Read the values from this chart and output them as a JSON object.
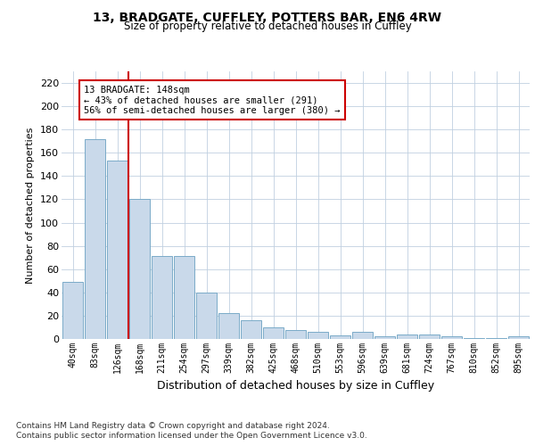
{
  "title1": "13, BRADGATE, CUFFLEY, POTTERS BAR, EN6 4RW",
  "title2": "Size of property relative to detached houses in Cuffley",
  "xlabel": "Distribution of detached houses by size in Cuffley",
  "ylabel": "Number of detached properties",
  "categories": [
    "40sqm",
    "83sqm",
    "126sqm",
    "168sqm",
    "211sqm",
    "254sqm",
    "297sqm",
    "339sqm",
    "382sqm",
    "425sqm",
    "468sqm",
    "510sqm",
    "553sqm",
    "596sqm",
    "639sqm",
    "681sqm",
    "724sqm",
    "767sqm",
    "810sqm",
    "852sqm",
    "895sqm"
  ],
  "values": [
    49,
    172,
    153,
    120,
    71,
    71,
    40,
    22,
    16,
    10,
    8,
    6,
    3,
    6,
    2,
    4,
    4,
    2,
    1,
    1,
    2
  ],
  "bar_color": "#c9d9ea",
  "bar_edge_color": "#7aaac8",
  "red_line_x": 2.5,
  "annotation_title": "13 BRADGATE: 148sqm",
  "annotation_line1": "← 43% of detached houses are smaller (291)",
  "annotation_line2": "56% of semi-detached houses are larger (380) →",
  "annotation_box_color": "#ffffff",
  "annotation_box_edge": "#cc0000",
  "red_line_color": "#cc0000",
  "ylim": [
    0,
    230
  ],
  "yticks": [
    0,
    20,
    40,
    60,
    80,
    100,
    120,
    140,
    160,
    180,
    200,
    220
  ],
  "footer1": "Contains HM Land Registry data © Crown copyright and database right 2024.",
  "footer2": "Contains public sector information licensed under the Open Government Licence v3.0.",
  "bg_color": "#ffffff",
  "grid_color": "#c0d0e0"
}
